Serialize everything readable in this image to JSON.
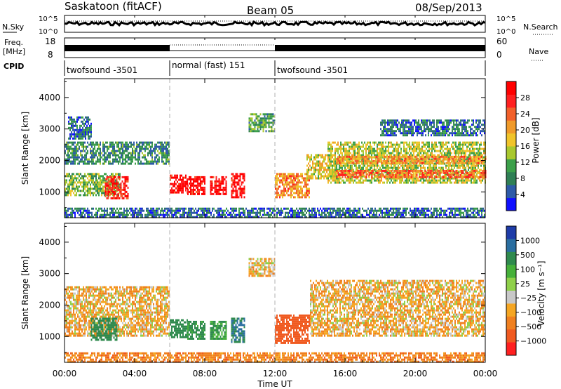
{
  "header": {
    "station": "Saskatoon (fitACF)",
    "beam": "Beam 05",
    "date": "08/Sep/2013"
  },
  "panels_top": {
    "nsky_label": "N.Sky",
    "nsky_ticks": [
      "10^5",
      "10^0"
    ],
    "nsearch_label": "N.Search",
    "nsearch_ticks": [
      "10^5",
      "10^0"
    ],
    "freq_label_1": "Freq.",
    "freq_label_2": "[MHz]",
    "freq_ticks": [
      "18",
      "8"
    ],
    "nave_label": "Nave",
    "nave_ticks": [
      "60",
      "0"
    ],
    "cpid_label": "CPID",
    "cpid_segments": [
      {
        "label": "twofsound -3501",
        "start": 0,
        "end": 6
      },
      {
        "label": "normal (fast) 151",
        "start": 6,
        "end": 12
      },
      {
        "label": "twofsound -3501",
        "start": 12,
        "end": 24
      }
    ]
  },
  "chart_data": [
    {
      "type": "heatmap",
      "name": "power",
      "ylabel": "Slant Range [km]",
      "xlabel": "Time UT",
      "ylim": [
        180,
        4600
      ],
      "xlim": [
        0,
        24
      ],
      "yticks": [
        1000,
        2000,
        3000,
        4000
      ],
      "xticks": [
        "00:00",
        "04:00",
        "08:00",
        "12:00",
        "16:00",
        "20:00",
        "00:00"
      ],
      "colorbar": {
        "label": "Power [dB]",
        "ticks": [
          "4",
          "8",
          "12",
          "16",
          "20",
          "24",
          "28"
        ],
        "colors": [
          "#1010ff",
          "#2d5aa8",
          "#2f7f55",
          "#3ca04a",
          "#a9c82e",
          "#f0c42a",
          "#f09a2a",
          "#f2602a",
          "#ff2020",
          "#ff0000"
        ]
      },
      "regions": [
        {
          "t0": 0.0,
          "t1": 6.0,
          "r0": 1900,
          "r1": 2600,
          "value": 10
        },
        {
          "t0": 0.0,
          "t1": 3.2,
          "r0": 900,
          "r1": 1600,
          "value": 14
        },
        {
          "t0": 0.2,
          "t1": 1.5,
          "r0": 2700,
          "r1": 3400,
          "value": 8
        },
        {
          "t0": 2.3,
          "t1": 3.6,
          "r0": 800,
          "r1": 1500,
          "value": 28
        },
        {
          "t0": 6.0,
          "t1": 7.0,
          "r0": 950,
          "r1": 1550,
          "value": 30
        },
        {
          "t0": 7.0,
          "t1": 8.0,
          "r0": 900,
          "r1": 1500,
          "value": 30
        },
        {
          "t0": 8.3,
          "t1": 9.2,
          "r0": 900,
          "r1": 1500,
          "value": 30
        },
        {
          "t0": 9.5,
          "t1": 10.3,
          "r0": 850,
          "r1": 1600,
          "value": 30
        },
        {
          "t0": 10.5,
          "t1": 12.0,
          "r0": 2900,
          "r1": 3500,
          "value": 12
        },
        {
          "t0": 12.0,
          "t1": 14.0,
          "r0": 800,
          "r1": 1600,
          "value": 22
        },
        {
          "t0": 13.8,
          "t1": 15.5,
          "r0": 1400,
          "r1": 2200,
          "value": 18
        },
        {
          "t0": 15.0,
          "t1": 24.0,
          "r0": 1300,
          "r1": 2600,
          "value": 16
        },
        {
          "t0": 15.5,
          "t1": 24.0,
          "r0": 1450,
          "r1": 1700,
          "value": 24
        },
        {
          "t0": 15.5,
          "t1": 24.0,
          "r0": 1900,
          "r1": 2150,
          "value": 22
        },
        {
          "t0": 18.0,
          "t1": 24.0,
          "r0": 2800,
          "r1": 3300,
          "value": 8
        },
        {
          "t0": 0.0,
          "t1": 24.0,
          "r0": 180,
          "r1": 500,
          "value": 8
        }
      ]
    },
    {
      "type": "heatmap",
      "name": "velocity",
      "ylabel": "Slant Range [km]",
      "xlabel": "Time UT",
      "ylim": [
        180,
        4600
      ],
      "xlim": [
        0,
        24
      ],
      "yticks": [
        1000,
        2000,
        3000,
        4000
      ],
      "xticks": [
        "00:00",
        "04:00",
        "08:00",
        "12:00",
        "16:00",
        "20:00",
        "00:00"
      ],
      "colorbar": {
        "label": "Velocity [m s⁻¹]",
        "ticks": [
          "1000",
          "500",
          "100",
          "25",
          "−25",
          "−100",
          "−500",
          "−1000"
        ],
        "colors": [
          "#1e3ca8",
          "#2a6ea0",
          "#2f8a4e",
          "#46b03a",
          "#8fd04a",
          "#c8c8c8",
          "#f5a623",
          "#f08020",
          "#f05a20",
          "#ff2020"
        ]
      },
      "regions": [
        {
          "t0": 0.0,
          "t1": 6.0,
          "r0": 1000,
          "r1": 2600,
          "value": 0
        },
        {
          "t0": 1.5,
          "t1": 3.0,
          "r0": 900,
          "r1": 1600,
          "value": 300
        },
        {
          "t0": 6.0,
          "t1": 7.0,
          "r0": 950,
          "r1": 1550,
          "value": 400
        },
        {
          "t0": 7.0,
          "t1": 8.0,
          "r0": 900,
          "r1": 1500,
          "value": 250
        },
        {
          "t0": 8.3,
          "t1": 9.2,
          "r0": 900,
          "r1": 1500,
          "value": 200
        },
        {
          "t0": 9.5,
          "t1": 10.3,
          "r0": 850,
          "r1": 1600,
          "value": 500
        },
        {
          "t0": 12.0,
          "t1": 14.0,
          "r0": 800,
          "r1": 1700,
          "value": -300
        },
        {
          "t0": 14.0,
          "t1": 24.0,
          "r0": 1000,
          "r1": 2800,
          "value": 0
        },
        {
          "t0": 10.5,
          "t1": 12.0,
          "r0": 2900,
          "r1": 3500,
          "value": 0
        },
        {
          "t0": 0.0,
          "t1": 24.0,
          "r0": 180,
          "r1": 500,
          "value": -60
        }
      ]
    }
  ]
}
